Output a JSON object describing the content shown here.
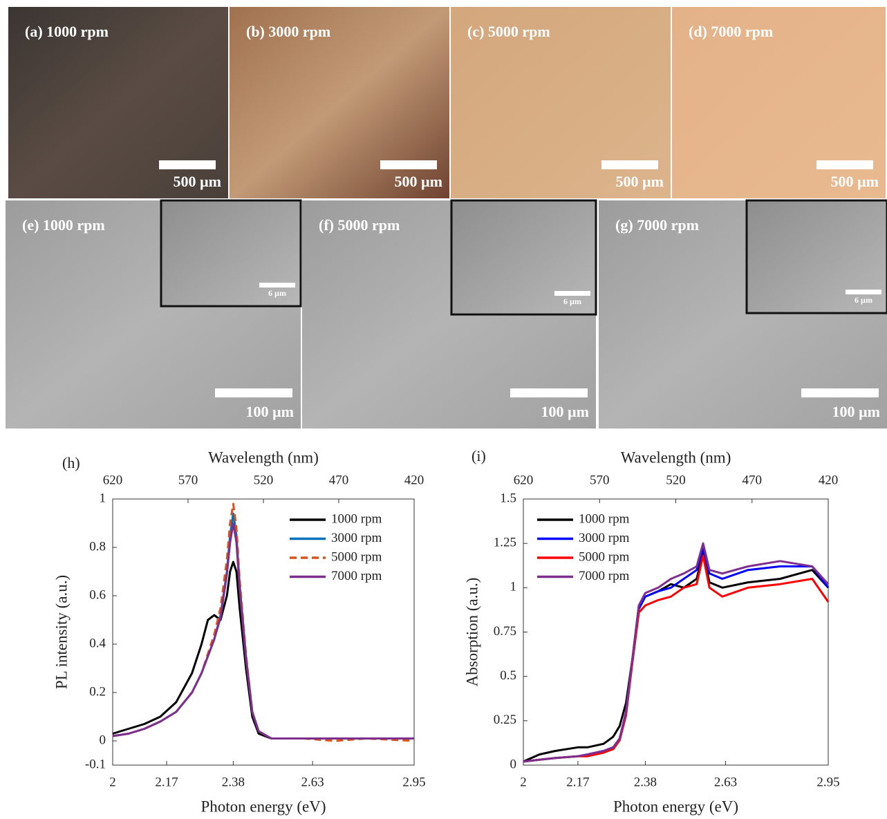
{
  "panels": [
    {
      "label": "(a) 1000 rpm",
      "scale": "500 µm"
    },
    {
      "label": "(b) 3000 rpm",
      "scale": "500 µm"
    },
    {
      "label": "(c) 5000 rpm",
      "scale": "500 µm"
    },
    {
      "label": "(d) 7000 rpm",
      "scale": "500 µm"
    },
    {
      "label": "(e) 1000 rpm",
      "scale": "100 µm",
      "inset_scale": "6 µm"
    },
    {
      "label": "(f) 5000 rpm",
      "scale": "100 µm",
      "inset_scale": "6 µm"
    },
    {
      "label": "(g) 7000 rpm",
      "scale": "100 µm",
      "inset_scale": "6 µm"
    }
  ],
  "chart_data": [
    {
      "type": "line",
      "panel": "(h)",
      "xlabel": "Photon energy (eV)",
      "ylabel": "PL intensity (a.u.)",
      "x2label": "Wavelength (nm)",
      "xlim": [
        2,
        2.95
      ],
      "xticks": [
        2,
        2.17,
        2.38,
        2.63,
        2.95
      ],
      "x2lim": [
        620,
        420
      ],
      "x2ticks": [
        620,
        570,
        520,
        470,
        420
      ],
      "ylim": [
        -0.1,
        1
      ],
      "yticks": [
        -0.1,
        0,
        0.2,
        0.4,
        0.6,
        0.8,
        1
      ],
      "legend": "upper right",
      "x": [
        2.0,
        2.05,
        2.1,
        2.15,
        2.2,
        2.25,
        2.28,
        2.3,
        2.32,
        2.34,
        2.36,
        2.37,
        2.38,
        2.39,
        2.4,
        2.42,
        2.44,
        2.46,
        2.5,
        2.6,
        2.7,
        2.8,
        2.95
      ],
      "series": [
        {
          "name": "1000 rpm",
          "color": "#000000",
          "values": [
            0.03,
            0.05,
            0.07,
            0.1,
            0.16,
            0.28,
            0.4,
            0.5,
            0.52,
            0.5,
            0.6,
            0.7,
            0.74,
            0.7,
            0.55,
            0.3,
            0.1,
            0.03,
            0.01,
            0.01,
            0.01,
            0.01,
            0.01
          ]
        },
        {
          "name": "3000 rpm",
          "color": "#0072bd",
          "values": [
            0.02,
            0.03,
            0.05,
            0.08,
            0.12,
            0.2,
            0.28,
            0.35,
            0.42,
            0.52,
            0.7,
            0.85,
            0.94,
            0.85,
            0.65,
            0.35,
            0.12,
            0.04,
            0.01,
            0.01,
            0.01,
            0.01,
            0.01
          ]
        },
        {
          "name": "5000 rpm",
          "color": "#d95319",
          "dashed": true,
          "values": [
            0.02,
            0.03,
            0.05,
            0.08,
            0.12,
            0.2,
            0.28,
            0.36,
            0.44,
            0.55,
            0.75,
            0.9,
            0.98,
            0.88,
            0.67,
            0.36,
            0.12,
            0.04,
            0.01,
            0.01,
            0.0,
            0.01,
            0.0
          ]
        },
        {
          "name": "7000 rpm",
          "color": "#7e2f8e",
          "values": [
            0.02,
            0.03,
            0.05,
            0.08,
            0.12,
            0.2,
            0.28,
            0.35,
            0.42,
            0.51,
            0.69,
            0.82,
            0.9,
            0.82,
            0.63,
            0.34,
            0.12,
            0.04,
            0.01,
            0.01,
            0.01,
            0.01,
            0.01
          ]
        }
      ]
    },
    {
      "type": "line",
      "panel": "(i)",
      "xlabel": "Photon energy (eV)",
      "ylabel": "Absorption (a.u.)",
      "x2label": "Wavelength (nm)",
      "xlim": [
        2,
        2.95
      ],
      "xticks": [
        2,
        2.17,
        2.38,
        2.63,
        2.95
      ],
      "x2lim": [
        620,
        420
      ],
      "x2ticks": [
        620,
        570,
        520,
        470,
        420
      ],
      "ylim": [
        0,
        1.5
      ],
      "yticks": [
        0,
        0.25,
        0.5,
        0.75,
        1,
        1.25,
        1.5
      ],
      "legend": "upper left",
      "x": [
        2.0,
        2.05,
        2.1,
        2.17,
        2.2,
        2.25,
        2.28,
        2.3,
        2.32,
        2.34,
        2.36,
        2.38,
        2.42,
        2.46,
        2.5,
        2.54,
        2.56,
        2.58,
        2.62,
        2.7,
        2.8,
        2.9,
        2.95
      ],
      "series": [
        {
          "name": "1000 rpm",
          "color": "#000000",
          "values": [
            0.02,
            0.06,
            0.08,
            0.1,
            0.1,
            0.12,
            0.16,
            0.22,
            0.35,
            0.6,
            0.9,
            0.95,
            0.98,
            1.02,
            1.0,
            1.05,
            1.2,
            1.03,
            1.0,
            1.03,
            1.05,
            1.1,
            1.0
          ]
        },
        {
          "name": "3000 rpm",
          "color": "#0000ff",
          "values": [
            0.02,
            0.03,
            0.04,
            0.05,
            0.06,
            0.08,
            0.1,
            0.15,
            0.3,
            0.6,
            0.88,
            0.95,
            0.98,
            1.0,
            1.05,
            1.1,
            1.22,
            1.08,
            1.05,
            1.1,
            1.12,
            1.12,
            1.0
          ]
        },
        {
          "name": "5000 rpm",
          "color": "#ff0000",
          "values": [
            0.02,
            0.03,
            0.04,
            0.05,
            0.05,
            0.07,
            0.09,
            0.14,
            0.28,
            0.58,
            0.86,
            0.9,
            0.93,
            0.95,
            1.0,
            1.02,
            1.18,
            1.0,
            0.95,
            1.0,
            1.02,
            1.05,
            0.92
          ]
        },
        {
          "name": "7000 rpm",
          "color": "#7e2f8e",
          "values": [
            0.02,
            0.03,
            0.04,
            0.05,
            0.06,
            0.08,
            0.1,
            0.15,
            0.3,
            0.6,
            0.9,
            0.97,
            1.0,
            1.05,
            1.08,
            1.12,
            1.25,
            1.1,
            1.08,
            1.12,
            1.15,
            1.12,
            1.02
          ]
        }
      ]
    }
  ]
}
